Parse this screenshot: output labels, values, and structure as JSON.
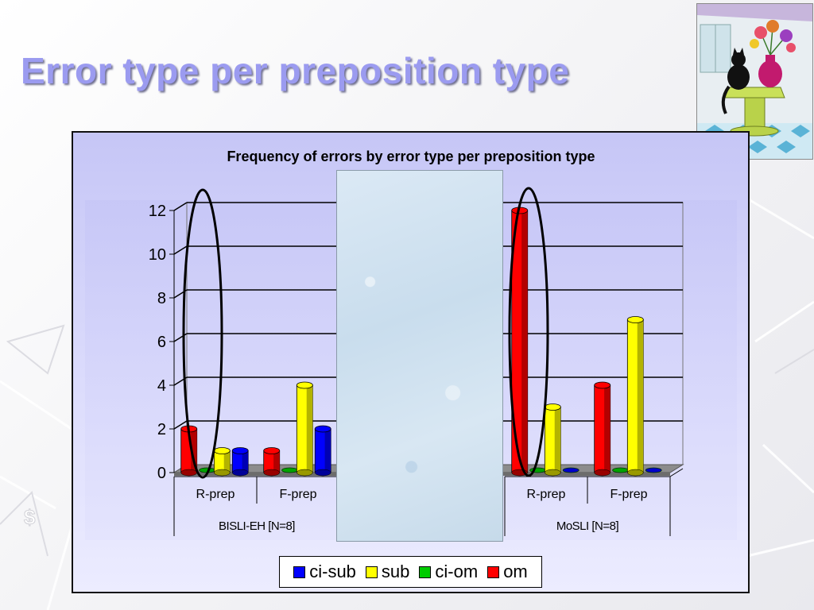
{
  "slide": {
    "title": "Error type per preposition type"
  },
  "colors": {
    "title": "#9b9bf0",
    "ci-sub": "#0000ff",
    "sub": "#ffff00",
    "ci-om": "#00cc00",
    "om": "#ff0000"
  },
  "chart_data": {
    "type": "bar",
    "title": "Frequency of errors by error type per preposition type",
    "xlabel": "",
    "ylabel": "",
    "ylim": [
      0,
      12
    ],
    "y_ticks": [
      "0",
      "2",
      "4",
      "6",
      "8",
      "10",
      "12"
    ],
    "grid": true,
    "legend_position": "bottom",
    "groups": [
      {
        "name": "BISLI-EH [N=8]",
        "categories": [
          "R-prep",
          "F-prep"
        ]
      },
      {
        "name": "MoSLI [N=8]",
        "categories": [
          "R-prep",
          "F-prep"
        ]
      }
    ],
    "series": [
      {
        "name": "om",
        "color": "#ff0000",
        "values": [
          2,
          1,
          12,
          4
        ]
      },
      {
        "name": "ci-om",
        "color": "#00cc00",
        "values": [
          0,
          0,
          0,
          0
        ]
      },
      {
        "name": "sub",
        "color": "#ffff00",
        "values": [
          1,
          4,
          3,
          7
        ]
      },
      {
        "name": "ci-sub",
        "color": "#0000ff",
        "values": [
          1,
          2,
          0,
          0
        ]
      }
    ],
    "legend": [
      "ci-sub",
      "sub",
      "ci-om",
      "om"
    ]
  }
}
